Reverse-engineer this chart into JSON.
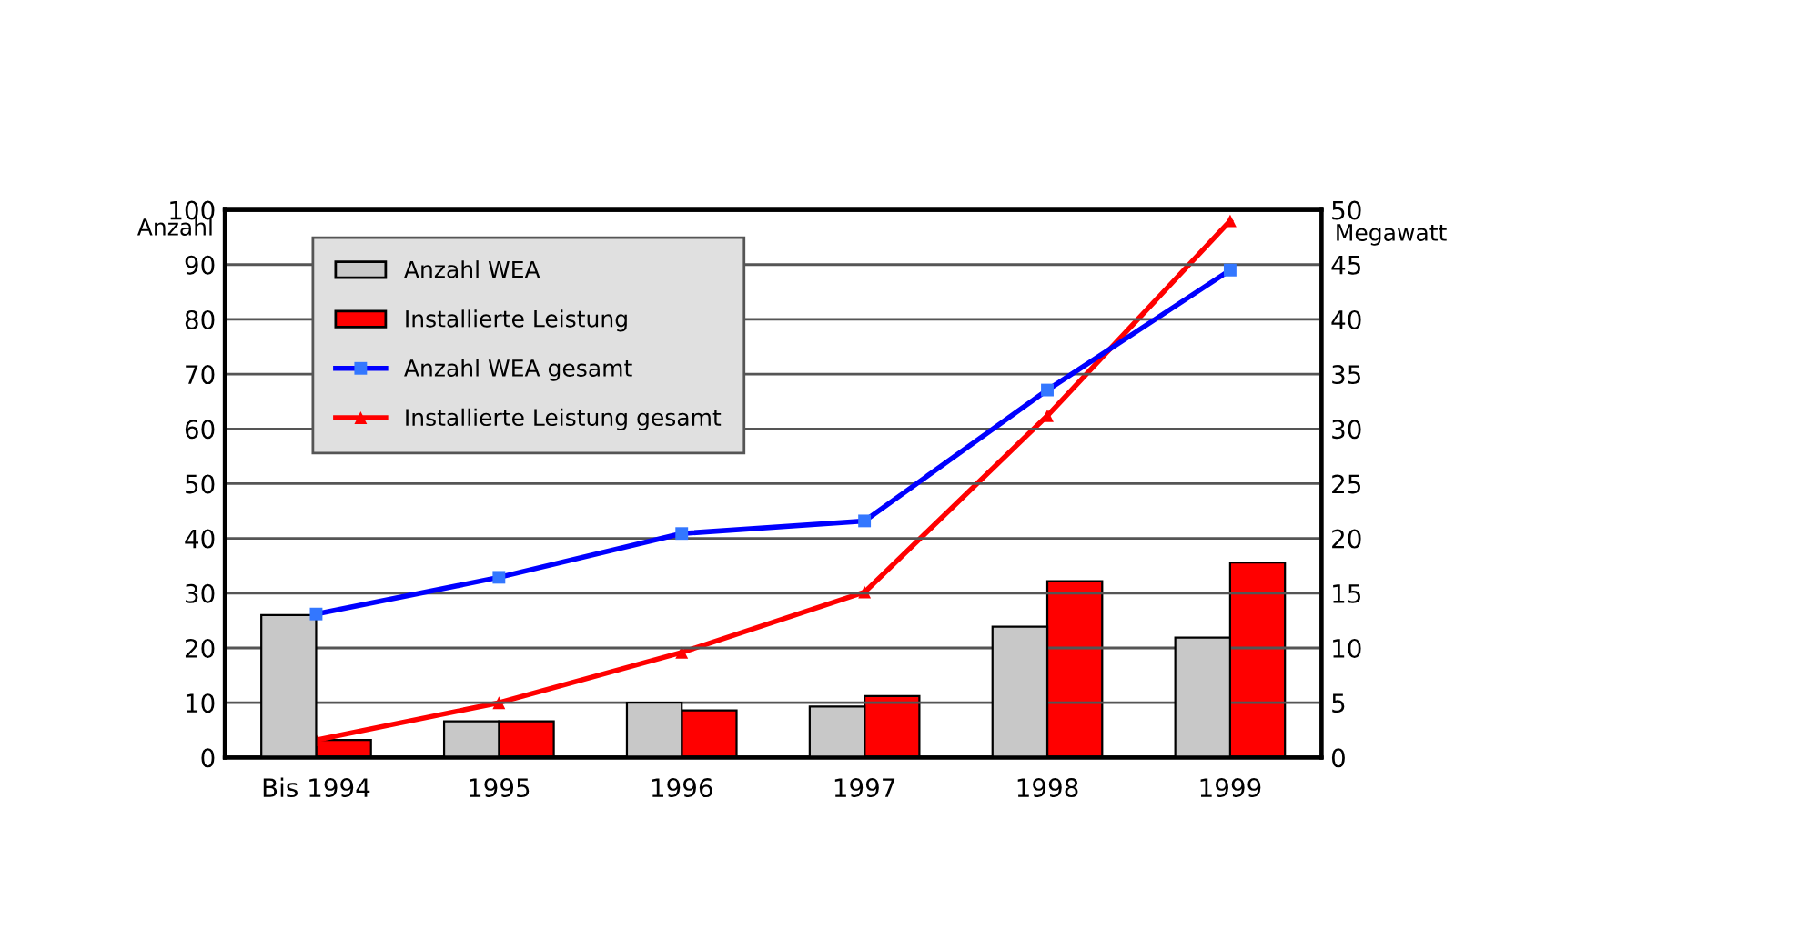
{
  "chart_data": {
    "type": "bar",
    "ylabel": "Anzahl",
    "y2label": "Megawatt",
    "categories": [
      "Bis 1994",
      "1995",
      "1996",
      "1997",
      "1998",
      "1999"
    ],
    "series": [
      {
        "name": "Anzahl WEA",
        "color": "#c8c8c8",
        "values": [
          26,
          6.6,
          10,
          9.3,
          23.9,
          21.9
        ]
      },
      {
        "name": "Installierte Leistung",
        "axis": "y2",
        "color": "#ff0000",
        "values": [
          1.6,
          3.3,
          4.3,
          5.6,
          16.1,
          17.8
        ]
      },
      {
        "name": "Anzahl WEA gesamt",
        "type": "line",
        "color": "#0000ff",
        "marker": "square",
        "values": [
          26.2,
          32.9,
          40.9,
          43.2,
          67.1,
          89
        ]
      },
      {
        "name": "Installierte Leistung gesamt",
        "type": "line",
        "axis": "y2",
        "color": "#ff0000",
        "marker": "triangle",
        "values": [
          1.6,
          5,
          9.6,
          15.1,
          31.2,
          49
        ]
      }
    ],
    "ylim": [
      0,
      100
    ],
    "yticks": [
      0,
      10,
      20,
      30,
      40,
      50,
      60,
      70,
      80,
      90,
      100
    ],
    "y2lim": [
      0,
      50
    ],
    "y2ticks": [
      0,
      5,
      10,
      15,
      20,
      25,
      30,
      35,
      40,
      45,
      50
    ],
    "grid": "y",
    "legend": "top left"
  }
}
